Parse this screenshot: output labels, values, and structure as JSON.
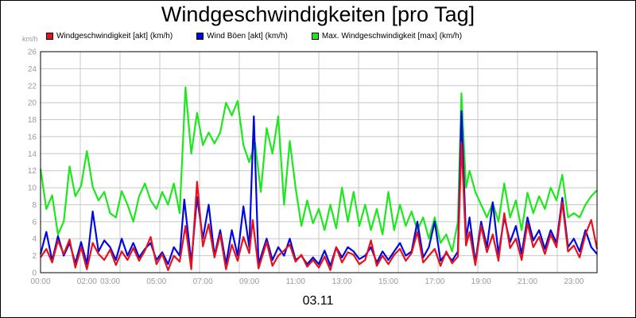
{
  "chart_data": {
    "type": "line",
    "title": "Windgeschwindigkeiten [pro Tag]",
    "ylabel": "km/h",
    "xlabel": "03.11",
    "ylim": [
      0,
      26
    ],
    "yticks": [
      0,
      2,
      4,
      6,
      8,
      10,
      12,
      14,
      16,
      18,
      20,
      22,
      24,
      26
    ],
    "xlim": [
      0,
      24
    ],
    "xticks": [
      {
        "x": 0,
        "label": "00:00"
      },
      {
        "x": 2,
        "label": "02:00"
      },
      {
        "x": 3,
        "label": "03:00"
      },
      {
        "x": 5,
        "label": "05:00"
      },
      {
        "x": 7,
        "label": "07:00"
      },
      {
        "x": 9,
        "label": "09:00"
      },
      {
        "x": 11,
        "label": "11:00"
      },
      {
        "x": 13,
        "label": "13:00"
      },
      {
        "x": 15,
        "label": "15:00"
      },
      {
        "x": 17,
        "label": "17:00"
      },
      {
        "x": 19,
        "label": "19:00"
      },
      {
        "x": 21,
        "label": "21:00"
      },
      {
        "x": 23,
        "label": "23:00"
      }
    ],
    "grid": true,
    "legend": "top-left",
    "series": [
      {
        "name": "Windgeschwindigkeit [akt] (km/h)",
        "color": "#e8101c",
        "points": [
          [
            0,
            1.8
          ],
          [
            0.25,
            2.8
          ],
          [
            0.5,
            1.2
          ],
          [
            0.75,
            3.8
          ],
          [
            1,
            2.2
          ],
          [
            1.25,
            3.9
          ],
          [
            1.5,
            0.6
          ],
          [
            1.75,
            3.0
          ],
          [
            2,
            0.4
          ],
          [
            2.25,
            3.5
          ],
          [
            2.5,
            2.2
          ],
          [
            2.75,
            1.5
          ],
          [
            3,
            2.7
          ],
          [
            3.25,
            0.9
          ],
          [
            3.5,
            2.5
          ],
          [
            3.75,
            1.5
          ],
          [
            4,
            2.9
          ],
          [
            4.25,
            1.4
          ],
          [
            4.5,
            2.6
          ],
          [
            4.75,
            4.2
          ],
          [
            5,
            1.0
          ],
          [
            5.25,
            2.2
          ],
          [
            5.5,
            0.3
          ],
          [
            5.75,
            2.0
          ],
          [
            6,
            1.3
          ],
          [
            6.25,
            5.5
          ],
          [
            6.5,
            0.4
          ],
          [
            6.75,
            10.7
          ],
          [
            7,
            3.1
          ],
          [
            7.25,
            5.7
          ],
          [
            7.5,
            1.8
          ],
          [
            7.75,
            4.5
          ],
          [
            8,
            0.4
          ],
          [
            8.25,
            3.3
          ],
          [
            8.5,
            1.4
          ],
          [
            8.75,
            4.2
          ],
          [
            9,
            2.3
          ],
          [
            9.15,
            6.2
          ],
          [
            9.4,
            0.5
          ],
          [
            9.75,
            3.6
          ],
          [
            10,
            0.8
          ],
          [
            10.25,
            2.0
          ],
          [
            10.5,
            2.6
          ],
          [
            10.75,
            3.3
          ],
          [
            11,
            1.3
          ],
          [
            11.25,
            2.1
          ],
          [
            11.5,
            0.7
          ],
          [
            11.75,
            1.5
          ],
          [
            12,
            0.6
          ],
          [
            12.25,
            1.9
          ],
          [
            12.5,
            0.3
          ],
          [
            12.75,
            3.0
          ],
          [
            13,
            1.2
          ],
          [
            13.25,
            2.4
          ],
          [
            13.5,
            2.1
          ],
          [
            13.75,
            1.0
          ],
          [
            14,
            1.5
          ],
          [
            14.25,
            3.8
          ],
          [
            14.5,
            0.8
          ],
          [
            14.75,
            2.0
          ],
          [
            15,
            1.0
          ],
          [
            15.25,
            2.1
          ],
          [
            15.5,
            2.8
          ],
          [
            15.75,
            1.4
          ],
          [
            16,
            2.3
          ],
          [
            16.25,
            4.8
          ],
          [
            16.5,
            1.2
          ],
          [
            16.75,
            2.0
          ],
          [
            17,
            2.8
          ],
          [
            17.25,
            0.8
          ],
          [
            17.5,
            2.5
          ],
          [
            17.75,
            1.1
          ],
          [
            18,
            1.9
          ],
          [
            18.15,
            15.3
          ],
          [
            18.35,
            3.2
          ],
          [
            18.5,
            4.8
          ],
          [
            18.75,
            0.9
          ],
          [
            19,
            5.5
          ],
          [
            19.25,
            2.4
          ],
          [
            19.5,
            4.5
          ],
          [
            19.75,
            1.4
          ],
          [
            20,
            7.0
          ],
          [
            20.25,
            2.9
          ],
          [
            20.5,
            4.0
          ],
          [
            20.75,
            1.5
          ],
          [
            21,
            5.8
          ],
          [
            21.25,
            3.0
          ],
          [
            21.5,
            4.2
          ],
          [
            21.75,
            2.2
          ],
          [
            22,
            4.5
          ],
          [
            22.25,
            3.0
          ],
          [
            22.5,
            8.3
          ],
          [
            22.75,
            2.5
          ],
          [
            23,
            3.2
          ],
          [
            23.25,
            1.8
          ],
          [
            23.5,
            4.5
          ],
          [
            23.75,
            6.2
          ],
          [
            24,
            2.8
          ]
        ]
      },
      {
        "name": "Wind Böen [akt] (km/h)",
        "color": "#0008e0",
        "points": [
          [
            0,
            2.2
          ],
          [
            0.25,
            4.8
          ],
          [
            0.5,
            1.4
          ],
          [
            0.75,
            4.3
          ],
          [
            1,
            2.0
          ],
          [
            1.25,
            3.5
          ],
          [
            1.5,
            1.1
          ],
          [
            1.75,
            3.6
          ],
          [
            2,
            1.0
          ],
          [
            2.25,
            7.2
          ],
          [
            2.5,
            2.5
          ],
          [
            2.75,
            3.8
          ],
          [
            3,
            3.0
          ],
          [
            3.25,
            1.5
          ],
          [
            3.5,
            4.0
          ],
          [
            3.75,
            2.0
          ],
          [
            4,
            3.5
          ],
          [
            4.25,
            1.8
          ],
          [
            4.5,
            2.8
          ],
          [
            4.75,
            3.5
          ],
          [
            5,
            1.5
          ],
          [
            5.25,
            2.4
          ],
          [
            5.5,
            1.0
          ],
          [
            5.75,
            3.0
          ],
          [
            6,
            2.0
          ],
          [
            6.2,
            8.6
          ],
          [
            6.5,
            1.2
          ],
          [
            6.75,
            8.9
          ],
          [
            7,
            4.0
          ],
          [
            7.25,
            8.0
          ],
          [
            7.5,
            2.0
          ],
          [
            7.75,
            5.0
          ],
          [
            8,
            1.0
          ],
          [
            8.25,
            5.0
          ],
          [
            8.5,
            2.0
          ],
          [
            8.75,
            7.8
          ],
          [
            9,
            3.0
          ],
          [
            9.2,
            18.4
          ],
          [
            9.4,
            1.0
          ],
          [
            9.75,
            4.0
          ],
          [
            10,
            1.5
          ],
          [
            10.25,
            3.0
          ],
          [
            10.5,
            2.0
          ],
          [
            10.75,
            4.0
          ],
          [
            11,
            1.5
          ],
          [
            11.25,
            2.0
          ],
          [
            11.5,
            1.0
          ],
          [
            11.75,
            1.8
          ],
          [
            12,
            1.0
          ],
          [
            12.25,
            2.6
          ],
          [
            12.5,
            0.8
          ],
          [
            12.75,
            3.0
          ],
          [
            13,
            1.8
          ],
          [
            13.25,
            3.0
          ],
          [
            13.5,
            2.5
          ],
          [
            13.75,
            1.6
          ],
          [
            14,
            2.0
          ],
          [
            14.25,
            3.0
          ],
          [
            14.5,
            1.2
          ],
          [
            14.75,
            2.5
          ],
          [
            15,
            1.5
          ],
          [
            15.25,
            2.5
          ],
          [
            15.5,
            3.5
          ],
          [
            15.75,
            2.0
          ],
          [
            16,
            2.5
          ],
          [
            16.25,
            6.0
          ],
          [
            16.5,
            1.8
          ],
          [
            16.75,
            3.0
          ],
          [
            17,
            6.0
          ],
          [
            17.25,
            1.4
          ],
          [
            17.5,
            2.3
          ],
          [
            17.75,
            1.4
          ],
          [
            18,
            2.5
          ],
          [
            18.15,
            19.0
          ],
          [
            18.35,
            4.0
          ],
          [
            18.5,
            6.5
          ],
          [
            18.75,
            1.2
          ],
          [
            19,
            6.0
          ],
          [
            19.25,
            3.0
          ],
          [
            19.5,
            8.3
          ],
          [
            19.75,
            2.2
          ],
          [
            20,
            6.5
          ],
          [
            20.25,
            3.6
          ],
          [
            20.5,
            5.5
          ],
          [
            20.75,
            2.2
          ],
          [
            21,
            6.5
          ],
          [
            21.25,
            3.8
          ],
          [
            21.5,
            5.0
          ],
          [
            21.75,
            2.8
          ],
          [
            22,
            5.0
          ],
          [
            22.25,
            3.5
          ],
          [
            22.5,
            8.8
          ],
          [
            22.75,
            3.0
          ],
          [
            23,
            4.0
          ],
          [
            23.25,
            2.5
          ],
          [
            23.5,
            5.0
          ],
          [
            23.75,
            3.0
          ],
          [
            24,
            2.2
          ]
        ]
      },
      {
        "name": "Max. Windgeschwindigkeit [max] (km/h)",
        "color": "#1de81d",
        "points": [
          [
            0,
            12.2
          ],
          [
            0.25,
            7.5
          ],
          [
            0.5,
            9.1
          ],
          [
            0.75,
            4.5
          ],
          [
            1,
            6.0
          ],
          [
            1.25,
            12.5
          ],
          [
            1.5,
            9.0
          ],
          [
            1.75,
            10.2
          ],
          [
            2,
            14.3
          ],
          [
            2.25,
            10.1
          ],
          [
            2.5,
            8.5
          ],
          [
            2.75,
            9.5
          ],
          [
            3,
            7.0
          ],
          [
            3.25,
            6.5
          ],
          [
            3.5,
            9.6
          ],
          [
            3.75,
            8.0
          ],
          [
            4,
            6.0
          ],
          [
            4.25,
            9.0
          ],
          [
            4.5,
            10.5
          ],
          [
            4.75,
            8.5
          ],
          [
            5,
            7.5
          ],
          [
            5.25,
            9.5
          ],
          [
            5.5,
            8.0
          ],
          [
            5.75,
            10.5
          ],
          [
            6,
            7.0
          ],
          [
            6.25,
            21.8
          ],
          [
            6.5,
            14.0
          ],
          [
            6.75,
            18.8
          ],
          [
            7,
            15.0
          ],
          [
            7.25,
            16.5
          ],
          [
            7.5,
            15.2
          ],
          [
            7.75,
            16.5
          ],
          [
            8,
            20.0
          ],
          [
            8.25,
            18.5
          ],
          [
            8.5,
            20.2
          ],
          [
            8.75,
            15.0
          ],
          [
            9,
            13.0
          ],
          [
            9.25,
            15.3
          ],
          [
            9.5,
            9.5
          ],
          [
            9.75,
            17.0
          ],
          [
            10,
            14.0
          ],
          [
            10.25,
            18.4
          ],
          [
            10.5,
            8.0
          ],
          [
            10.75,
            15.5
          ],
          [
            11,
            10.0
          ],
          [
            11.25,
            5.5
          ],
          [
            11.5,
            8.5
          ],
          [
            11.75,
            5.8
          ],
          [
            12,
            7.5
          ],
          [
            12.25,
            5.0
          ],
          [
            12.5,
            8.0
          ],
          [
            12.75,
            5.2
          ],
          [
            13,
            10.0
          ],
          [
            13.25,
            6.0
          ],
          [
            13.5,
            9.5
          ],
          [
            13.75,
            5.5
          ],
          [
            14,
            8.0
          ],
          [
            14.25,
            5.0
          ],
          [
            14.5,
            7.5
          ],
          [
            14.75,
            4.5
          ],
          [
            15,
            9.5
          ],
          [
            15.25,
            5.0
          ],
          [
            15.5,
            8.0
          ],
          [
            15.75,
            5.5
          ],
          [
            16,
            7.2
          ],
          [
            16.25,
            5.0
          ],
          [
            16.5,
            6.5
          ],
          [
            16.75,
            4.0
          ],
          [
            17,
            6.5
          ],
          [
            17.25,
            3.5
          ],
          [
            17.5,
            4.5
          ],
          [
            17.75,
            2.5
          ],
          [
            18,
            6.0
          ],
          [
            18.15,
            21.1
          ],
          [
            18.35,
            10.0
          ],
          [
            18.5,
            12.0
          ],
          [
            18.75,
            9.5
          ],
          [
            19,
            8.0
          ],
          [
            19.25,
            6.5
          ],
          [
            19.5,
            8.2
          ],
          [
            19.75,
            6.0
          ],
          [
            20,
            10.5
          ],
          [
            20.25,
            6.5
          ],
          [
            20.5,
            8.5
          ],
          [
            20.75,
            5.0
          ],
          [
            21,
            9.4
          ],
          [
            21.25,
            7.0
          ],
          [
            21.5,
            9.0
          ],
          [
            21.75,
            7.5
          ],
          [
            22,
            10.0
          ],
          [
            22.25,
            8.5
          ],
          [
            22.5,
            11.5
          ],
          [
            22.75,
            6.5
          ],
          [
            23,
            7.0
          ],
          [
            23.25,
            6.5
          ],
          [
            23.5,
            8.0
          ],
          [
            23.75,
            9.0
          ],
          [
            24,
            9.7
          ]
        ]
      }
    ]
  }
}
